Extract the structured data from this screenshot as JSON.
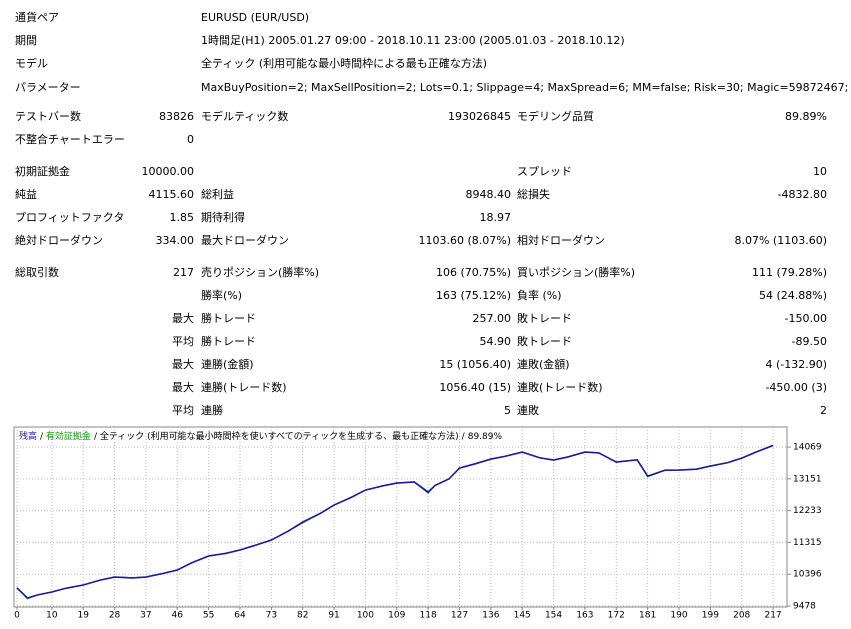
{
  "report": {
    "rows": [
      [
        "通貨ペア",
        null,
        "EURUSD (EUR/USD)",
        null,
        null,
        null
      ],
      [
        "期間",
        null,
        "1時間足(H1) 2005.01.27 09:00 - 2018.10.11 23:00 (2005.01.03 - 2018.10.12)",
        null,
        null,
        null
      ],
      [
        "モデル",
        null,
        "全ティック (利用可能な最小時間枠による最も正確な方法)",
        null,
        null,
        null
      ],
      [
        "パラメーター",
        null,
        "MaxBuyPosition=2; MaxSellPosition=2; Lots=0.1; Slippage=4; MaxSpread=6; MM=false; Risk=30; Magic=59872467;",
        null,
        null,
        null
      ],
      [
        "テストバー数",
        "83826",
        "モデルティック数",
        "193026845",
        "モデリング品質",
        "89.89%"
      ],
      [
        "不整合チャートエラー",
        "0",
        null,
        null,
        null,
        null
      ],
      [
        "初期証拠金",
        "10000.00",
        null,
        null,
        "スプレッド",
        "10"
      ],
      [
        "純益",
        "4115.60",
        "総利益",
        "8948.40",
        "総損失",
        "-4832.80"
      ],
      [
        "プロフィットファクタ",
        "1.85",
        "期待利得",
        "18.97",
        null,
        null
      ],
      [
        "絶対ドローダウン",
        "334.00",
        "最大ドローダウン",
        "1103.60 (8.07%)",
        "相対ドローダウン",
        "8.07% (1103.60)"
      ],
      [
        "総取引数",
        "217",
        "売りポジション(勝率%)",
        "106 (70.75%)",
        "買いポジション(勝率%)",
        "111 (79.28%)"
      ],
      [
        null,
        null,
        "勝率(%)",
        "163 (75.12%)",
        "負率 (%)",
        "54 (24.88%)"
      ],
      [
        null,
        "最大",
        "勝トレード",
        "257.00",
        "敗トレード",
        "-150.00"
      ],
      [
        null,
        "平均",
        "勝トレード",
        "54.90",
        "敗トレード",
        "-89.50"
      ],
      [
        null,
        "最大",
        "連勝(金額)",
        "15 (1056.40)",
        "連敗(金額)",
        "4 (-132.90)"
      ],
      [
        null,
        "最大",
        "連勝(トレード数)",
        "1056.40 (15)",
        "連敗(トレード数)",
        "-450.00 (3)"
      ],
      [
        null,
        "平均",
        "連勝",
        "5",
        "連敗",
        "2"
      ]
    ]
  },
  "chart_data": {
    "type": "line",
    "legend_separator": "/",
    "legend_model": "全ティック (利用可能な最小時間枠を使いすべてのティックを生成する、最も正確な方法)",
    "legend_quality": "89.89%",
    "x": [
      0,
      3,
      6,
      10,
      14,
      19,
      24,
      28,
      33,
      37,
      42,
      46,
      50,
      55,
      60,
      64,
      68,
      73,
      78,
      82,
      87,
      91,
      96,
      100,
      105,
      109,
      114,
      118,
      120,
      124,
      127,
      132,
      136,
      140,
      145,
      150,
      154,
      158,
      163,
      167,
      172,
      178,
      181,
      186,
      190,
      195,
      199,
      204,
      208,
      212,
      217
    ],
    "series": [
      {
        "name": "有効証拠金",
        "color": "#00a000",
        "values": [
          10000,
          9690,
          9800,
          9882,
          9990,
          10084,
          10230,
          10315,
          10290,
          10315,
          10420,
          10517,
          10720,
          10922,
          11000,
          11095,
          11220,
          11384,
          11650,
          11880,
          12150,
          12394,
          12620,
          12827,
          12950,
          13030,
          13060,
          12740,
          12960,
          13150,
          13462,
          13600,
          13722,
          13800,
          13924,
          13760,
          13693,
          13780,
          13924,
          13900,
          13635,
          13700,
          13210,
          13400,
          13404,
          13430,
          13520,
          13620,
          13750,
          13920,
          14115.6
        ]
      },
      {
        "name": "残高",
        "color": "#1a1aa0",
        "values": [
          10000,
          9709,
          9800,
          9882,
          9990,
          10084,
          10230,
          10315,
          10290,
          10315,
          10420,
          10517,
          10720,
          10922,
          11000,
          11095,
          11220,
          11384,
          11650,
          11903,
          12150,
          12394,
          12620,
          12827,
          12950,
          13030,
          13060,
          12769,
          12960,
          13150,
          13462,
          13600,
          13722,
          13800,
          13924,
          13760,
          13693,
          13780,
          13924,
          13900,
          13635,
          13700,
          13231,
          13400,
          13404,
          13430,
          13520,
          13620,
          13750,
          13920,
          14115.6
        ]
      }
    ],
    "xlim": [
      0,
      221
    ],
    "ylim": [
      9478,
      14620
    ],
    "xticks": [
      0,
      10,
      19,
      28,
      37,
      46,
      55,
      64,
      73,
      82,
      91,
      100,
      109,
      118,
      127,
      136,
      145,
      154,
      163,
      172,
      181,
      190,
      199,
      208,
      217
    ],
    "yticks": [
      9478,
      10396,
      11315,
      12233,
      13151,
      14069
    ],
    "grid": true
  }
}
